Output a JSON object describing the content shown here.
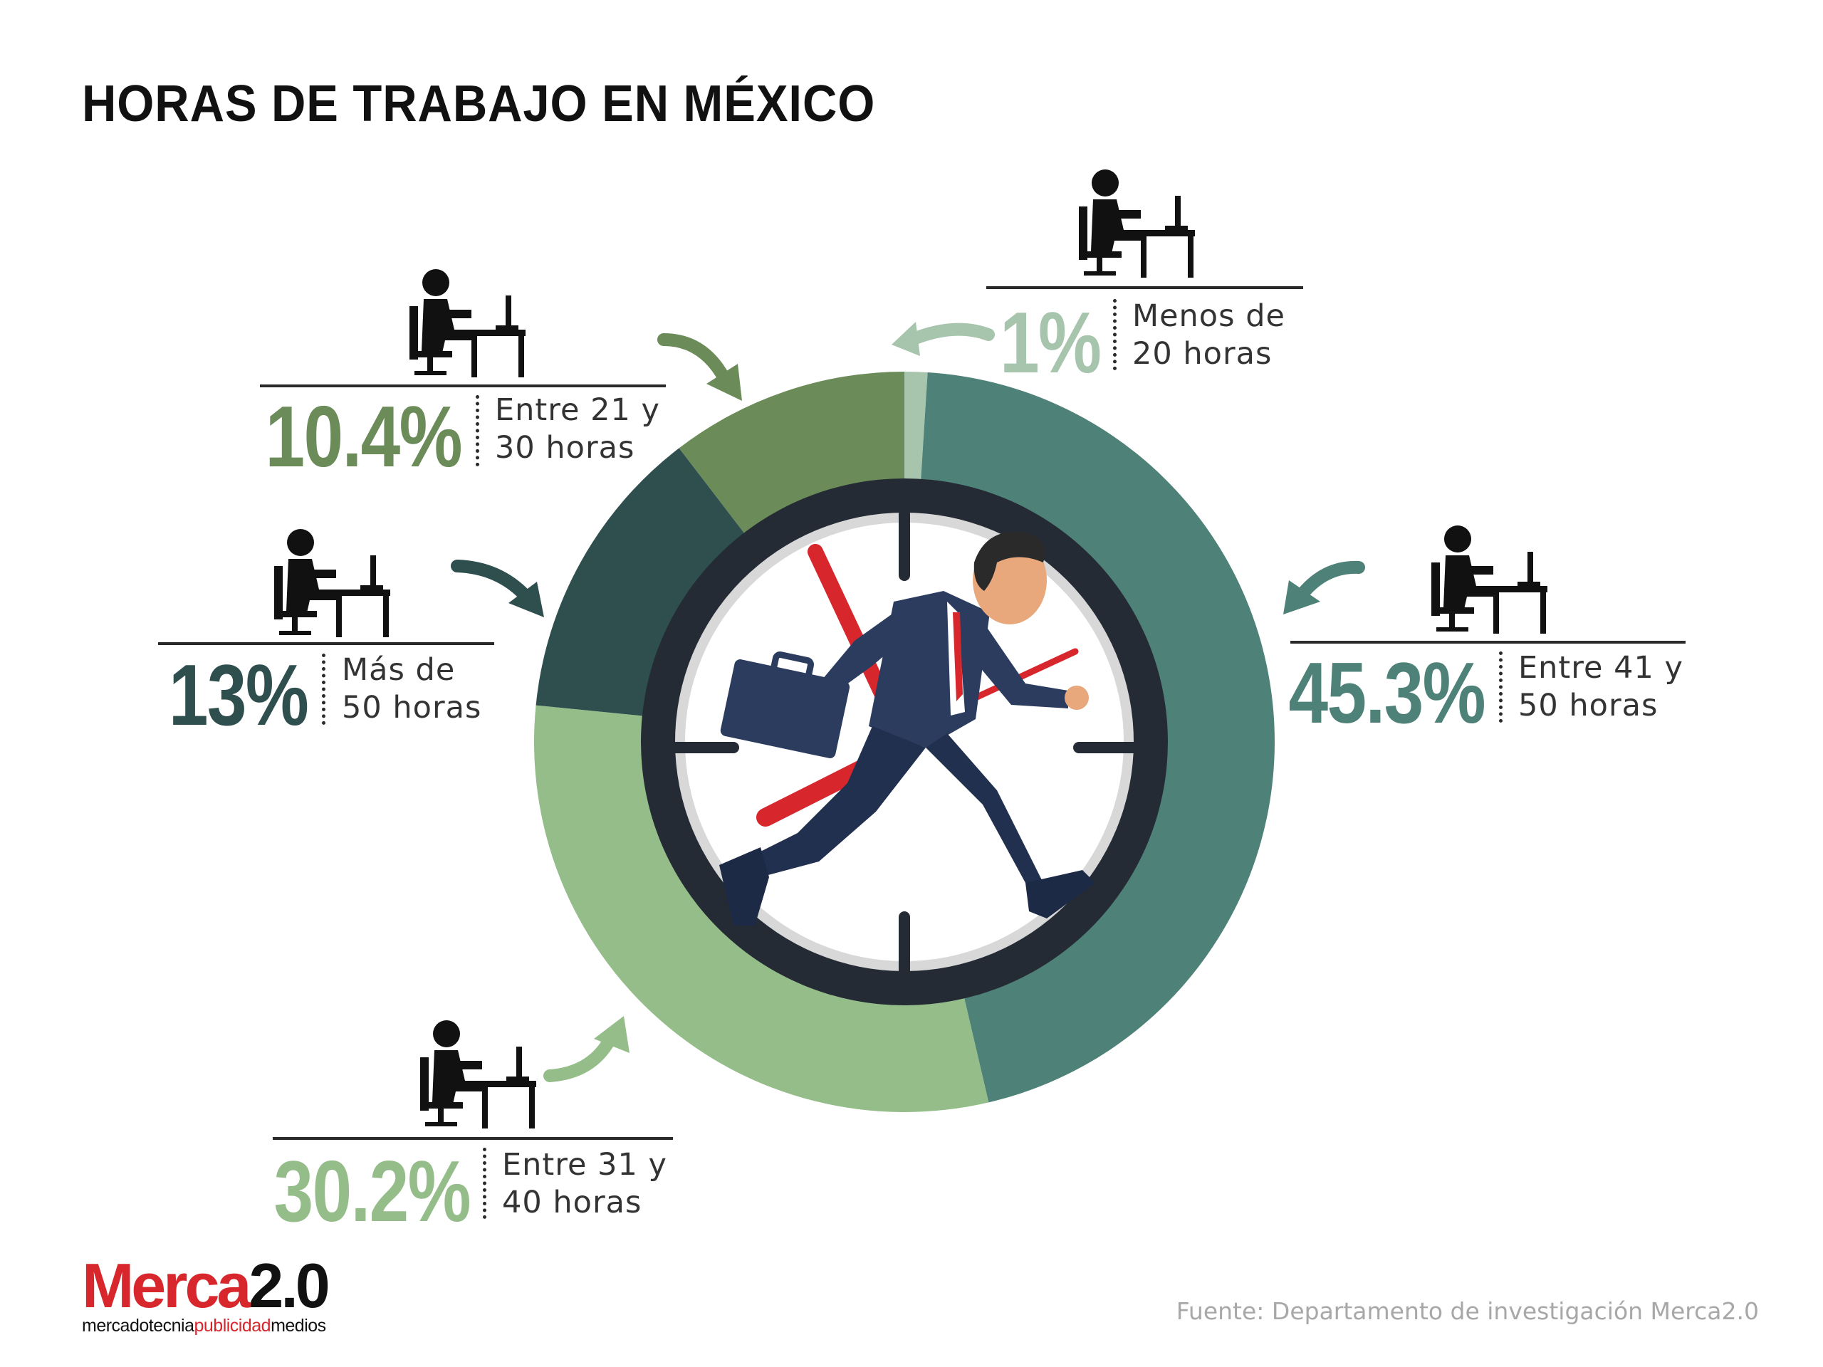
{
  "title": "HORAS DE TRABAJO EN MÉXICO",
  "chart_data": {
    "type": "pie",
    "title": "HORAS DE TRABAJO EN MÉXICO",
    "style": "donut",
    "segments": [
      {
        "label": "Menos de 20 horas",
        "line1": "Menos de",
        "line2": "20 horas",
        "value": 1,
        "display": "1%",
        "color": "#a7c4ad"
      },
      {
        "label": "Entre 41 y 50 horas",
        "line1": "Entre 41 y",
        "line2": "50 horas",
        "value": 45.3,
        "display": "45.3%",
        "color": "#4e8177"
      },
      {
        "label": "Entre 31 y 40 horas",
        "line1": "Entre 31 y",
        "line2": "40 horas",
        "value": 30.2,
        "display": "30.2%",
        "color": "#95bd8a"
      },
      {
        "label": "Más de 50 horas",
        "line1": "Más de",
        "line2": "50 horas",
        "value": 13,
        "display": "13%",
        "color": "#2f4f4e"
      },
      {
        "label": "Entre 21 y 30 horas",
        "line1": "Entre 21 y",
        "line2": "30 horas",
        "value": 10.4,
        "display": "10.4%",
        "color": "#6b8b58"
      }
    ]
  },
  "center_icon": "running-businessman-clock-icon",
  "person_icon": "person-at-desk-icon",
  "brand": {
    "name_main": "Merca",
    "name_num": "2.0",
    "tag_a": "mercadotecnia",
    "tag_b": "publicidad",
    "tag_c": "medios",
    "color": "#d7262c"
  },
  "source": "Fuente: Departamento de investigación Merca2.0"
}
